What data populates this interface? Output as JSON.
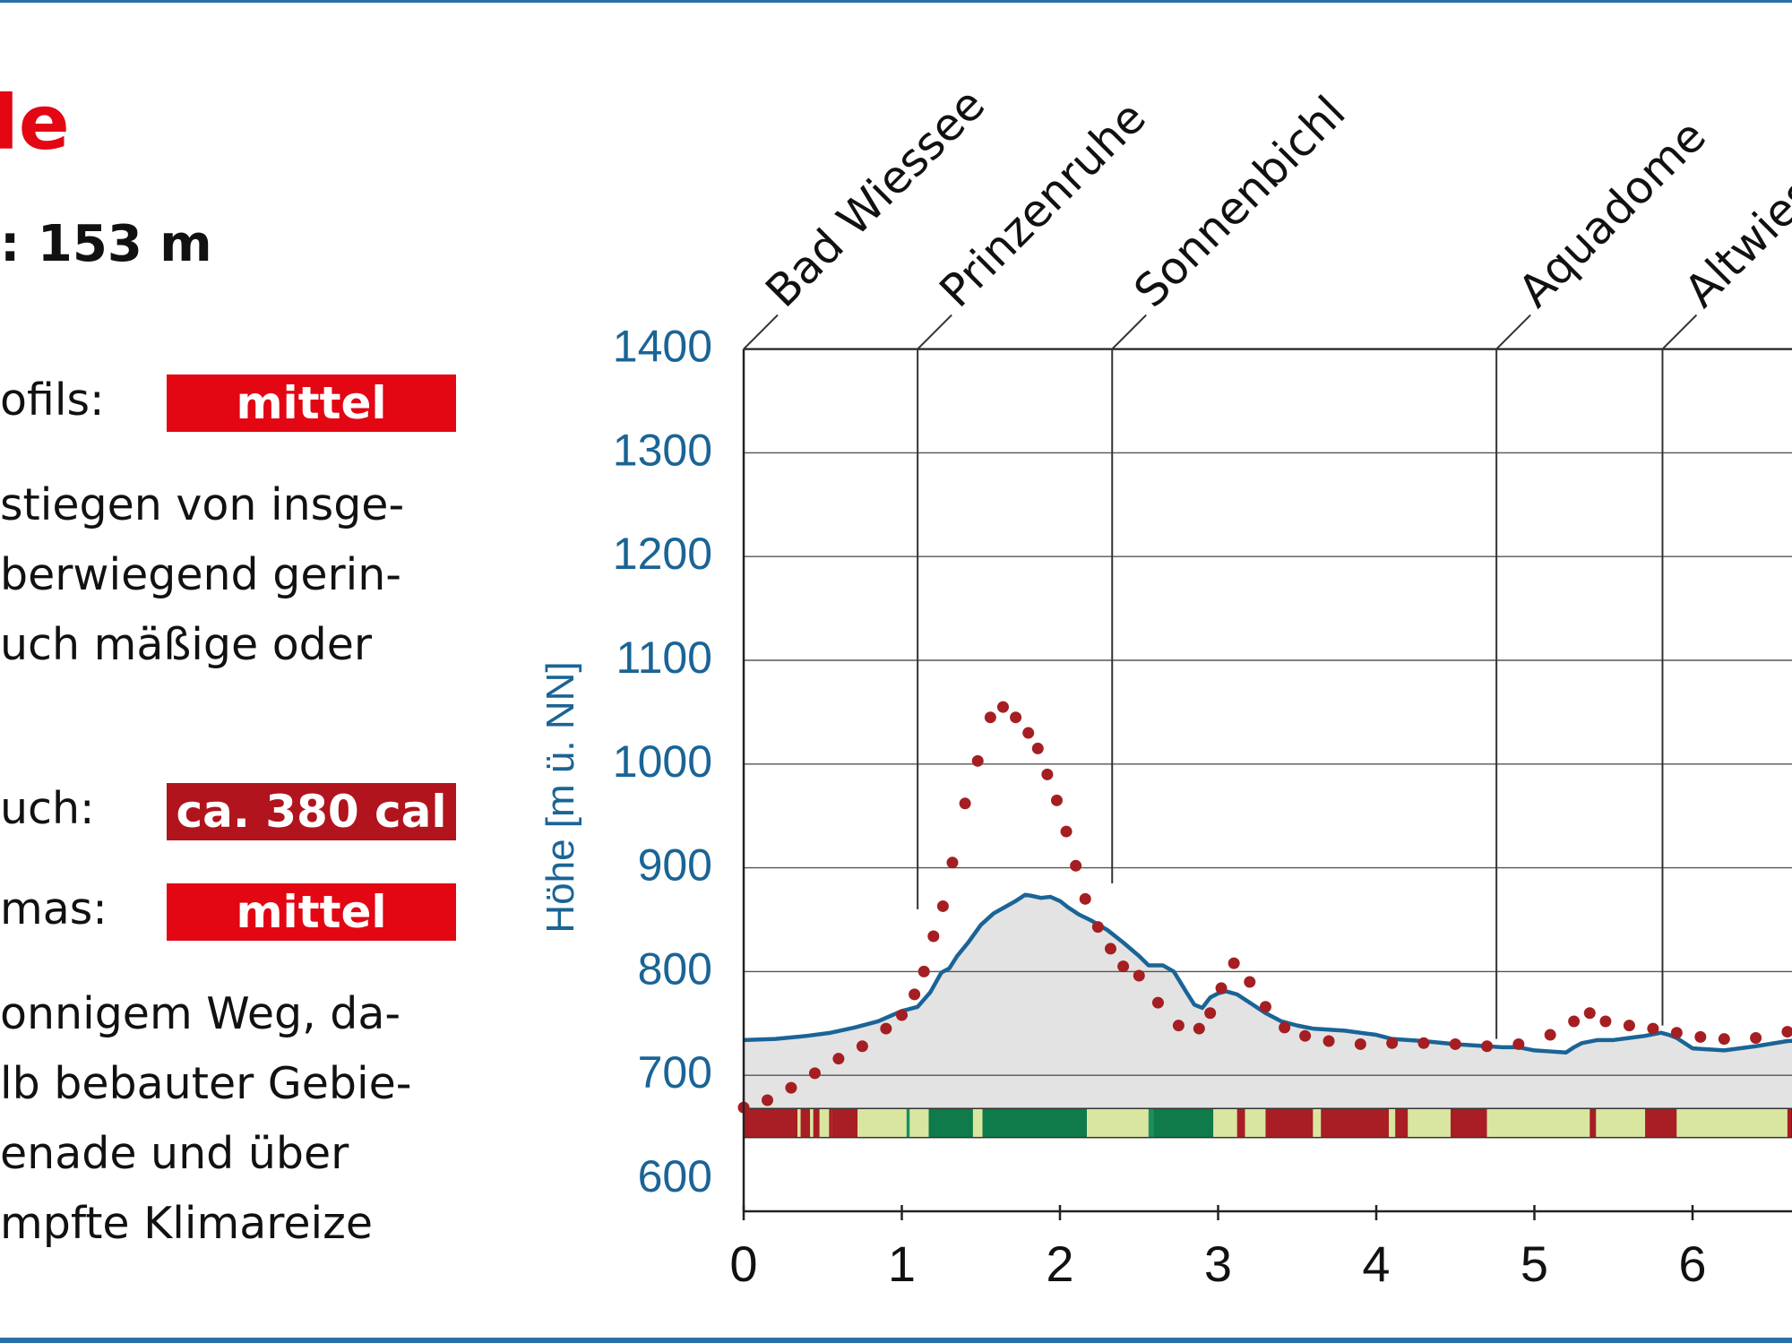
{
  "left_panel": {
    "title": "le",
    "subtitle": ": 153 m",
    "profile": {
      "label": "ofils:",
      "badge": "mittel",
      "color": "#e30613"
    },
    "profile_text": [
      "stiegen von insge-",
      "berwiegend gerin-",
      "uch mäßige oder"
    ],
    "consumption": {
      "label": "uch:",
      "badge": "ca. 380 cal",
      "color": "#b1141c"
    },
    "climate": {
      "label": "mas:",
      "badge": "mittel",
      "color": "#e30613"
    },
    "climate_text": [
      "onnigem Weg, da-",
      "lb bebauter Gebie-",
      "enade und über",
      "mpfte Klimareize"
    ]
  },
  "chart_data": {
    "type": "area",
    "ylabel": "Höhe [m ü. NN]",
    "ylim": [
      600,
      1400
    ],
    "yticks": [
      600,
      700,
      800,
      900,
      1000,
      1100,
      1200,
      1300,
      1400
    ],
    "xlim": [
      0,
      6.75
    ],
    "xticks": [
      "0",
      "1",
      "2",
      "3",
      "4",
      "5",
      "6",
      "6"
    ],
    "xtick_values": [
      0,
      1,
      2,
      3,
      4,
      5,
      6,
      6.75
    ],
    "grid": true,
    "colors": {
      "elevation": "#1a6496",
      "dotted": "#a51e22",
      "fill": "#e3e3e3",
      "axis": "#1a6496"
    },
    "places": [
      {
        "name": "Bad Wiessee",
        "x": 0.0,
        "drop_to": 720
      },
      {
        "name": "Prinzenruhe",
        "x": 1.1,
        "drop_to": 860
      },
      {
        "name": "Sonnenbichl",
        "x": 2.33,
        "drop_to": 885
      },
      {
        "name": "Aquadome",
        "x": 4.76,
        "drop_to": 735
      },
      {
        "name": "Altwiessee",
        "x": 5.81,
        "drop_to": 748
      }
    ],
    "series": [
      {
        "kind": "elevation",
        "x": [
          0,
          0.2,
          0.4,
          0.55,
          0.7,
          0.85,
          1.0,
          1.1,
          1.18,
          1.25,
          1.3,
          1.35,
          1.42,
          1.5,
          1.58,
          1.65,
          1.72,
          1.78,
          1.82,
          1.88,
          1.94,
          2.0,
          2.05,
          2.12,
          2.2,
          2.3,
          2.4,
          2.5,
          2.56,
          2.65,
          2.72,
          2.8,
          2.85,
          2.9,
          2.95,
          3.0,
          3.05,
          3.12,
          3.2,
          3.3,
          3.4,
          3.5,
          3.6,
          3.7,
          3.8,
          4.0,
          4.1,
          4.3,
          4.5,
          4.7,
          4.8,
          4.9,
          5.0,
          5.1,
          5.2,
          5.25,
          5.3,
          5.4,
          5.5,
          5.6,
          5.7,
          5.8,
          5.85,
          5.9,
          6.0,
          6.2,
          6.4,
          6.6,
          6.75
        ],
        "values": [
          734,
          735,
          738,
          741,
          746,
          752,
          762,
          766,
          780,
          799,
          803,
          815,
          828,
          845,
          856,
          862,
          868,
          874,
          873,
          871,
          872,
          868,
          862,
          855,
          849,
          840,
          828,
          815,
          806,
          806,
          800,
          780,
          768,
          765,
          775,
          779,
          781,
          778,
          770,
          760,
          752,
          748,
          745,
          744,
          743,
          739,
          735,
          733,
          730,
          728,
          727,
          727,
          724,
          723,
          722,
          727,
          731,
          734,
          734,
          736,
          738,
          741,
          739,
          736,
          726,
          724,
          728,
          733,
          734
        ]
      },
      {
        "kind": "dotted",
        "x": [
          0,
          0.15,
          0.3,
          0.45,
          0.6,
          0.75,
          0.9,
          1.0,
          1.08,
          1.14,
          1.2,
          1.26,
          1.32,
          1.4,
          1.48,
          1.56,
          1.64,
          1.72,
          1.8,
          1.86,
          1.92,
          1.98,
          2.04,
          2.1,
          2.16,
          2.24,
          2.32,
          2.4,
          2.5,
          2.62,
          2.75,
          2.88,
          2.95,
          3.02,
          3.1,
          3.2,
          3.3,
          3.42,
          3.55,
          3.7,
          3.9,
          4.1,
          4.3,
          4.5,
          4.7,
          4.9,
          5.1,
          5.25,
          5.35,
          5.45,
          5.6,
          5.75,
          5.9,
          6.05,
          6.2,
          6.4,
          6.6,
          6.75
        ],
        "values": [
          669,
          676,
          688,
          702,
          716,
          728,
          745,
          758,
          778,
          800,
          834,
          863,
          905,
          962,
          1003,
          1045,
          1055,
          1045,
          1030,
          1015,
          990,
          965,
          935,
          902,
          870,
          843,
          822,
          805,
          796,
          770,
          748,
          745,
          760,
          784,
          808,
          790,
          766,
          746,
          738,
          733,
          730,
          731,
          731,
          730,
          728,
          730,
          739,
          752,
          760,
          752,
          748,
          745,
          741,
          737,
          735,
          736,
          742,
          748
        ]
      }
    ],
    "surface_segments": [
      [
        0,
        0.34,
        "#a81e24"
      ],
      [
        0.34,
        0.36,
        "#d9e6a0"
      ],
      [
        0.36,
        0.42,
        "#a81e24"
      ],
      [
        0.42,
        0.44,
        "#d9e6a0"
      ],
      [
        0.44,
        0.48,
        "#a81e24"
      ],
      [
        0.48,
        0.54,
        "#d9e6a0"
      ],
      [
        0.54,
        0.56,
        "#a81e24"
      ],
      [
        0.56,
        0.72,
        "#a81e24"
      ],
      [
        0.72,
        1.0,
        "#d9e6a0"
      ],
      [
        1.0,
        1.03,
        "#d9e6a0"
      ],
      [
        1.03,
        1.05,
        "#1a8f5f"
      ],
      [
        1.05,
        1.17,
        "#d9e6a0"
      ],
      [
        1.17,
        1.45,
        "#0f7a4a"
      ],
      [
        1.45,
        1.51,
        "#d9e6a0"
      ],
      [
        1.51,
        2.17,
        "#0f7a4a"
      ],
      [
        2.17,
        2.56,
        "#d9e6a0"
      ],
      [
        2.56,
        2.59,
        "#1a8f5f"
      ],
      [
        2.59,
        2.97,
        "#0f7a4a"
      ],
      [
        2.97,
        3.12,
        "#d9e6a0"
      ],
      [
        3.12,
        3.17,
        "#a81e24"
      ],
      [
        3.17,
        3.3,
        "#d9e6a0"
      ],
      [
        3.3,
        3.6,
        "#a81e24"
      ],
      [
        3.6,
        3.65,
        "#d9e6a0"
      ],
      [
        3.65,
        4.0,
        "#a81e24"
      ],
      [
        4.0,
        4.08,
        "#a81e24"
      ],
      [
        4.08,
        4.12,
        "#d9e6a0"
      ],
      [
        4.12,
        4.2,
        "#a81e24"
      ],
      [
        4.2,
        4.47,
        "#d9e6a0"
      ],
      [
        4.47,
        4.7,
        "#a81e24"
      ],
      [
        4.7,
        5.35,
        "#d9e6a0"
      ],
      [
        5.35,
        5.39,
        "#a81e24"
      ],
      [
        5.39,
        5.7,
        "#d9e6a0"
      ],
      [
        5.7,
        5.9,
        "#a81e24"
      ],
      [
        5.9,
        6.6,
        "#d9e6a0"
      ],
      [
        6.6,
        6.75,
        "#a81e24"
      ]
    ]
  }
}
